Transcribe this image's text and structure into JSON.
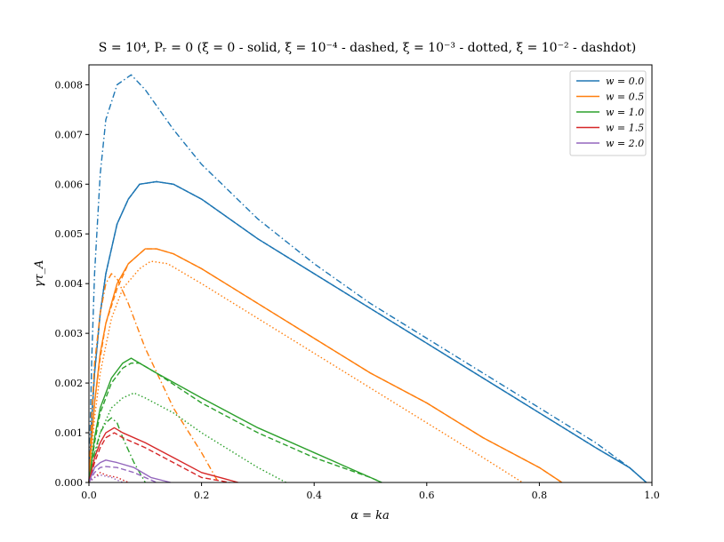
{
  "chart_data": {
    "type": "line",
    "title": "S = 10⁴, Pᵣ = 0 (ξ = 0 - solid, ξ = 10⁻⁴ - dashed, ξ = 10⁻³ - dotted, ξ = 10⁻² - dashdot)",
    "xlabel": "α = ka",
    "ylabel": "γτ_A",
    "xlim": [
      0.0,
      1.0
    ],
    "ylim": [
      0.0,
      0.0084
    ],
    "xticks": [
      "0.0",
      "0.2",
      "0.4",
      "0.6",
      "0.8",
      "1.0"
    ],
    "yticks": [
      "0.000",
      "0.001",
      "0.002",
      "0.003",
      "0.004",
      "0.005",
      "0.006",
      "0.007",
      "0.008"
    ],
    "xtick_values": [
      0.0,
      0.2,
      0.4,
      0.6,
      0.8,
      1.0
    ],
    "ytick_values": [
      0.0,
      0.001,
      0.002,
      0.003,
      0.004,
      0.005,
      0.006,
      0.007,
      0.008
    ],
    "legend_position": "top-right",
    "legend": [
      {
        "label": "w = 0.0",
        "color": "#1f77b4"
      },
      {
        "label": "w = 0.5",
        "color": "#ff7f0e"
      },
      {
        "label": "w = 1.0",
        "color": "#2ca02c"
      },
      {
        "label": "w = 1.5",
        "color": "#d62728"
      },
      {
        "label": "w = 2.0",
        "color": "#9467bd"
      }
    ],
    "series": [
      {
        "color": "#1f77b4",
        "style": "solid",
        "points": [
          [
            0,
            0
          ],
          [
            0.005,
            0.0013
          ],
          [
            0.01,
            0.0022
          ],
          [
            0.02,
            0.0034
          ],
          [
            0.03,
            0.0042
          ],
          [
            0.05,
            0.0052
          ],
          [
            0.07,
            0.0057
          ],
          [
            0.09,
            0.006
          ],
          [
            0.12,
            0.00605
          ],
          [
            0.15,
            0.006
          ],
          [
            0.2,
            0.0057
          ],
          [
            0.3,
            0.0049
          ],
          [
            0.4,
            0.0042
          ],
          [
            0.5,
            0.0035
          ],
          [
            0.6,
            0.0028
          ],
          [
            0.7,
            0.0021
          ],
          [
            0.8,
            0.0014
          ],
          [
            0.9,
            0.0007
          ],
          [
            0.96,
            0.0003
          ],
          [
            0.99,
            0.0
          ]
        ]
      },
      {
        "color": "#1f77b4",
        "style": "dashed",
        "points": [
          [
            0,
            0
          ],
          [
            0.005,
            0.0013
          ],
          [
            0.01,
            0.0022
          ],
          [
            0.02,
            0.0034
          ],
          [
            0.03,
            0.0042
          ],
          [
            0.05,
            0.0052
          ],
          [
            0.07,
            0.0057
          ],
          [
            0.09,
            0.006
          ],
          [
            0.12,
            0.00605
          ],
          [
            0.15,
            0.006
          ],
          [
            0.2,
            0.0057
          ],
          [
            0.3,
            0.0049
          ],
          [
            0.4,
            0.0042
          ],
          [
            0.5,
            0.0035
          ],
          [
            0.6,
            0.0028
          ],
          [
            0.7,
            0.0021
          ],
          [
            0.8,
            0.0014
          ],
          [
            0.9,
            0.0007
          ],
          [
            0.96,
            0.0003
          ],
          [
            0.99,
            0.0
          ]
        ]
      },
      {
        "color": "#1f77b4",
        "style": "dotted",
        "points": [
          [
            0,
            0
          ],
          [
            0.005,
            0.0013
          ],
          [
            0.01,
            0.0022
          ],
          [
            0.02,
            0.0034
          ],
          [
            0.03,
            0.0042
          ],
          [
            0.05,
            0.0052
          ],
          [
            0.07,
            0.0057
          ],
          [
            0.09,
            0.006
          ],
          [
            0.12,
            0.00605
          ],
          [
            0.15,
            0.006
          ],
          [
            0.2,
            0.0057
          ],
          [
            0.3,
            0.0049
          ],
          [
            0.4,
            0.0042
          ],
          [
            0.5,
            0.0035
          ],
          [
            0.6,
            0.0028
          ],
          [
            0.7,
            0.0021
          ],
          [
            0.8,
            0.0014
          ],
          [
            0.9,
            0.0007
          ],
          [
            0.96,
            0.0003
          ],
          [
            0.99,
            0.0
          ]
        ]
      },
      {
        "color": "#1f77b4",
        "style": "dashdot",
        "points": [
          [
            0,
            0
          ],
          [
            0.005,
            0.0025
          ],
          [
            0.01,
            0.0042
          ],
          [
            0.02,
            0.0062
          ],
          [
            0.03,
            0.0073
          ],
          [
            0.05,
            0.008
          ],
          [
            0.075,
            0.0082
          ],
          [
            0.1,
            0.0079
          ],
          [
            0.15,
            0.0071
          ],
          [
            0.2,
            0.0064
          ],
          [
            0.3,
            0.0053
          ],
          [
            0.4,
            0.0044
          ],
          [
            0.5,
            0.0036
          ],
          [
            0.6,
            0.0029
          ],
          [
            0.7,
            0.0022
          ],
          [
            0.8,
            0.0015
          ],
          [
            0.9,
            0.0008
          ],
          [
            0.96,
            0.0003
          ],
          [
            0.99,
            0.0
          ]
        ]
      },
      {
        "color": "#ff7f0e",
        "style": "solid",
        "points": [
          [
            0,
            0
          ],
          [
            0.005,
            0.0009
          ],
          [
            0.01,
            0.0016
          ],
          [
            0.02,
            0.0026
          ],
          [
            0.03,
            0.0032
          ],
          [
            0.05,
            0.004
          ],
          [
            0.07,
            0.0044
          ],
          [
            0.1,
            0.0047
          ],
          [
            0.12,
            0.0047
          ],
          [
            0.15,
            0.0046
          ],
          [
            0.2,
            0.0043
          ],
          [
            0.3,
            0.0036
          ],
          [
            0.4,
            0.0029
          ],
          [
            0.5,
            0.0022
          ],
          [
            0.6,
            0.0016
          ],
          [
            0.7,
            0.0009
          ],
          [
            0.8,
            0.0003
          ],
          [
            0.84,
            0.0
          ]
        ]
      },
      {
        "color": "#ff7f0e",
        "style": "dashed",
        "points": [
          [
            0,
            0
          ],
          [
            0.005,
            0.0009
          ],
          [
            0.01,
            0.0016
          ],
          [
            0.02,
            0.0025
          ],
          [
            0.03,
            0.0032
          ],
          [
            0.05,
            0.0039
          ],
          [
            0.07,
            0.0044
          ],
          [
            0.1,
            0.0047
          ],
          [
            0.12,
            0.0047
          ],
          [
            0.15,
            0.0046
          ],
          [
            0.2,
            0.0043
          ],
          [
            0.3,
            0.0036
          ],
          [
            0.4,
            0.0029
          ],
          [
            0.5,
            0.0022
          ],
          [
            0.6,
            0.0016
          ],
          [
            0.7,
            0.0009
          ],
          [
            0.8,
            0.0003
          ],
          [
            0.84,
            0.0
          ]
        ]
      },
      {
        "color": "#ff7f0e",
        "style": "dotted",
        "points": [
          [
            0,
            0
          ],
          [
            0.01,
            0.0013
          ],
          [
            0.02,
            0.0022
          ],
          [
            0.04,
            0.0033
          ],
          [
            0.06,
            0.0039
          ],
          [
            0.09,
            0.0043
          ],
          [
            0.11,
            0.00445
          ],
          [
            0.14,
            0.0044
          ],
          [
            0.2,
            0.004
          ],
          [
            0.3,
            0.0033
          ],
          [
            0.4,
            0.0026
          ],
          [
            0.5,
            0.0019
          ],
          [
            0.6,
            0.0012
          ],
          [
            0.7,
            0.0005
          ],
          [
            0.77,
            0.0
          ]
        ]
      },
      {
        "color": "#ff7f0e",
        "style": "dashdot",
        "points": [
          [
            0,
            0
          ],
          [
            0.005,
            0.0014
          ],
          [
            0.01,
            0.0024
          ],
          [
            0.02,
            0.0034
          ],
          [
            0.03,
            0.004
          ],
          [
            0.04,
            0.0042
          ],
          [
            0.05,
            0.0041
          ],
          [
            0.07,
            0.0036
          ],
          [
            0.1,
            0.0027
          ],
          [
            0.15,
            0.0015
          ],
          [
            0.2,
            0.0006
          ],
          [
            0.23,
            0.0
          ]
        ]
      },
      {
        "color": "#2ca02c",
        "style": "solid",
        "points": [
          [
            0,
            0
          ],
          [
            0.01,
            0.0009
          ],
          [
            0.02,
            0.0015
          ],
          [
            0.04,
            0.0021
          ],
          [
            0.06,
            0.0024
          ],
          [
            0.075,
            0.0025
          ],
          [
            0.09,
            0.0024
          ],
          [
            0.12,
            0.0022
          ],
          [
            0.2,
            0.0017
          ],
          [
            0.3,
            0.0011
          ],
          [
            0.4,
            0.0006
          ],
          [
            0.5,
            0.0001
          ],
          [
            0.52,
            0.0
          ]
        ]
      },
      {
        "color": "#2ca02c",
        "style": "dashed",
        "points": [
          [
            0,
            0
          ],
          [
            0.01,
            0.0008
          ],
          [
            0.02,
            0.0014
          ],
          [
            0.04,
            0.002
          ],
          [
            0.06,
            0.0023
          ],
          [
            0.075,
            0.0024
          ],
          [
            0.09,
            0.0024
          ],
          [
            0.12,
            0.0022
          ],
          [
            0.2,
            0.0016
          ],
          [
            0.3,
            0.001
          ],
          [
            0.4,
            0.0005
          ],
          [
            0.5,
            0.0001
          ],
          [
            0.52,
            0.0
          ]
        ]
      },
      {
        "color": "#2ca02c",
        "style": "dotted",
        "points": [
          [
            0,
            0
          ],
          [
            0.01,
            0.0005
          ],
          [
            0.02,
            0.001
          ],
          [
            0.04,
            0.0015
          ],
          [
            0.06,
            0.0017
          ],
          [
            0.08,
            0.0018
          ],
          [
            0.1,
            0.0017
          ],
          [
            0.15,
            0.0014
          ],
          [
            0.2,
            0.001
          ],
          [
            0.3,
            0.0003
          ],
          [
            0.35,
            0.0
          ]
        ]
      },
      {
        "color": "#2ca02c",
        "style": "dashdot",
        "points": [
          [
            0,
            0
          ],
          [
            0.01,
            0.0006
          ],
          [
            0.02,
            0.001
          ],
          [
            0.03,
            0.0012
          ],
          [
            0.04,
            0.0013
          ],
          [
            0.05,
            0.0012
          ],
          [
            0.06,
            0.0009
          ],
          [
            0.08,
            0.0004
          ],
          [
            0.1,
            0.0
          ]
        ]
      },
      {
        "color": "#d62728",
        "style": "solid",
        "points": [
          [
            0,
            0
          ],
          [
            0.01,
            0.0005
          ],
          [
            0.02,
            0.0008
          ],
          [
            0.03,
            0.001
          ],
          [
            0.045,
            0.0011
          ],
          [
            0.06,
            0.001
          ],
          [
            0.1,
            0.0008
          ],
          [
            0.15,
            0.0005
          ],
          [
            0.2,
            0.0002
          ],
          [
            0.265,
            0.0
          ]
        ]
      },
      {
        "color": "#d62728",
        "style": "dashed",
        "points": [
          [
            0,
            0
          ],
          [
            0.01,
            0.0004
          ],
          [
            0.02,
            0.0007
          ],
          [
            0.03,
            0.0009
          ],
          [
            0.045,
            0.001
          ],
          [
            0.06,
            0.0009
          ],
          [
            0.1,
            0.0007
          ],
          [
            0.15,
            0.0004
          ],
          [
            0.2,
            0.0001
          ],
          [
            0.25,
            0.0
          ]
        ]
      },
      {
        "color": "#d62728",
        "style": "dotted",
        "points": [
          [
            0,
            0
          ],
          [
            0.01,
            0.0001
          ],
          [
            0.02,
            0.0002
          ],
          [
            0.03,
            0.00015
          ],
          [
            0.05,
            0.0001
          ],
          [
            0.07,
            0.0
          ]
        ]
      },
      {
        "color": "#9467bd",
        "style": "solid",
        "points": [
          [
            0,
            0
          ],
          [
            0.01,
            0.0003
          ],
          [
            0.02,
            0.0004
          ],
          [
            0.03,
            0.00045
          ],
          [
            0.05,
            0.0004
          ],
          [
            0.08,
            0.0003
          ],
          [
            0.11,
            0.0001
          ],
          [
            0.145,
            0.0
          ]
        ]
      },
      {
        "color": "#9467bd",
        "style": "dashed",
        "points": [
          [
            0,
            0
          ],
          [
            0.01,
            0.0002
          ],
          [
            0.02,
            0.0003
          ],
          [
            0.03,
            0.00032
          ],
          [
            0.05,
            0.0003
          ],
          [
            0.08,
            0.0002
          ],
          [
            0.12,
            0.0
          ]
        ]
      },
      {
        "color": "#9467bd",
        "style": "dotted",
        "points": [
          [
            0,
            0
          ],
          [
            0.01,
            0.0001
          ],
          [
            0.02,
            0.00015
          ],
          [
            0.04,
            0.0001
          ],
          [
            0.06,
            0.0
          ]
        ]
      }
    ]
  }
}
